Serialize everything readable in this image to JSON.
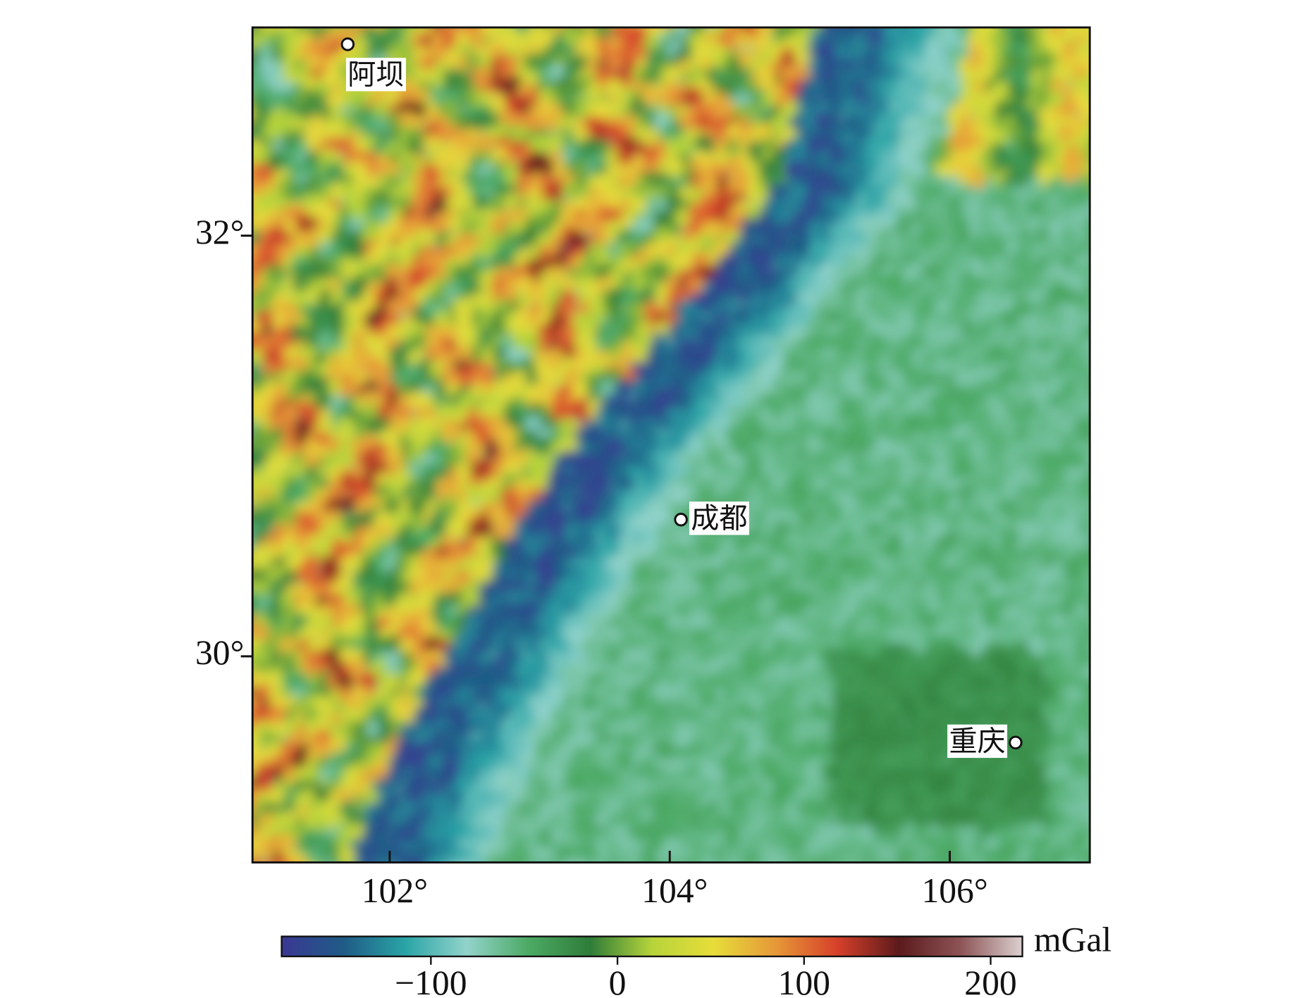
{
  "chart_data": {
    "type": "map",
    "xlim": [
      101.02,
      107.0
    ],
    "ylim": [
      29.02,
      32.99
    ],
    "xticks": [
      {
        "value": 102,
        "label": "102°"
      },
      {
        "value": 104,
        "label": "104°"
      },
      {
        "value": 106,
        "label": "106°"
      }
    ],
    "yticks": [
      {
        "value": 30,
        "label": "30°"
      },
      {
        "value": 32,
        "label": "32°"
      }
    ],
    "cities": [
      {
        "name": "阿坝",
        "lon": 101.7,
        "lat": 32.91
      },
      {
        "name": "成都",
        "lon": 104.08,
        "lat": 30.65
      },
      {
        "name": "重庆",
        "lon": 106.47,
        "lat": 29.59
      }
    ],
    "colorbar": {
      "unit": "mGal",
      "lim": [
        -180,
        217
      ],
      "ticks": [
        {
          "value": -100,
          "label": "−100"
        },
        0,
        100,
        200
      ],
      "colors": [
        "#3a3893",
        "#1f5b86",
        "#2aa4a6",
        "#92d3cb",
        "#4caa64",
        "#2e7c39",
        "#b7d43a",
        "#e7dd3a",
        "#e69838",
        "#d6402a",
        "#5c1a1c",
        "#8d5456",
        "#dcd0d0"
      ]
    }
  }
}
